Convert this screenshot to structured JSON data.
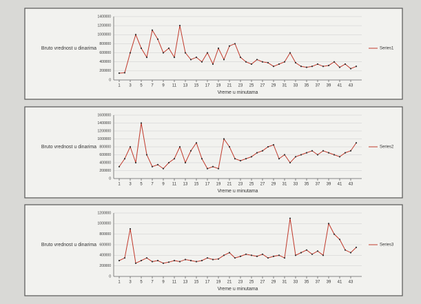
{
  "chart_data": [
    {
      "type": "line",
      "y_label": "Bruto vrednost u dinarima",
      "x_label": "Vreme u minutama",
      "x": [
        1,
        2,
        3,
        4,
        5,
        6,
        7,
        8,
        9,
        10,
        11,
        12,
        13,
        14,
        15,
        16,
        17,
        18,
        19,
        20,
        21,
        22,
        23,
        24,
        25,
        26,
        27,
        28,
        29,
        30,
        31,
        32,
        33,
        34,
        35,
        36,
        37,
        38,
        39,
        40,
        41,
        42,
        43,
        44
      ],
      "xlim": [
        0,
        45
      ],
      "xticks": [
        1,
        3,
        5,
        7,
        9,
        11,
        13,
        15,
        17,
        19,
        21,
        23,
        25,
        27,
        29,
        31,
        33,
        35,
        37,
        39,
        41,
        43
      ],
      "ylim": [
        0,
        1400000
      ],
      "yticks": [
        0,
        200000,
        400000,
        600000,
        800000,
        1000000,
        1200000,
        1400000
      ],
      "series": [
        {
          "name": "Series1",
          "color": "#c0392b",
          "values": [
            150000,
            160000,
            600000,
            1000000,
            700000,
            500000,
            1100000,
            900000,
            600000,
            700000,
            500000,
            1200000,
            600000,
            450000,
            500000,
            400000,
            600000,
            350000,
            700000,
            450000,
            750000,
            800000,
            500000,
            400000,
            350000,
            450000,
            400000,
            380000,
            300000,
            350000,
            400000,
            600000,
            380000,
            300000,
            280000,
            300000,
            350000,
            300000,
            320000,
            400000,
            280000,
            350000,
            250000,
            300000
          ]
        }
      ]
    },
    {
      "type": "line",
      "y_label": "Bruto vrednost u dinarima",
      "x_label": "Vreme u minutama",
      "x": [
        1,
        2,
        3,
        4,
        5,
        6,
        7,
        8,
        9,
        10,
        11,
        12,
        13,
        14,
        15,
        16,
        17,
        18,
        19,
        20,
        21,
        22,
        23,
        24,
        25,
        26,
        27,
        28,
        29,
        30,
        31,
        32,
        33,
        34,
        35,
        36,
        37,
        38,
        39,
        40,
        41,
        42,
        43,
        44
      ],
      "xlim": [
        0,
        45
      ],
      "xticks": [
        1,
        3,
        5,
        7,
        9,
        11,
        13,
        15,
        17,
        19,
        21,
        23,
        25,
        27,
        29,
        31,
        33,
        35,
        37,
        39,
        41,
        43
      ],
      "ylim": [
        0,
        1600000
      ],
      "yticks": [
        0,
        200000,
        400000,
        600000,
        800000,
        1000000,
        1200000,
        1400000,
        1600000
      ],
      "series": [
        {
          "name": "Series2",
          "color": "#c0392b",
          "values": [
            300000,
            500000,
            800000,
            400000,
            1400000,
            600000,
            300000,
            350000,
            250000,
            400000,
            500000,
            800000,
            400000,
            700000,
            900000,
            500000,
            250000,
            300000,
            250000,
            1000000,
            800000,
            500000,
            450000,
            500000,
            550000,
            650000,
            700000,
            800000,
            850000,
            500000,
            600000,
            400000,
            550000,
            600000,
            650000,
            700000,
            600000,
            700000,
            650000,
            600000,
            550000,
            650000,
            700000,
            900000
          ]
        }
      ]
    },
    {
      "type": "line",
      "y_label": "Bruto vrednost u dinarima",
      "x_label": "Vreme u minutama",
      "x": [
        1,
        2,
        3,
        4,
        5,
        6,
        7,
        8,
        9,
        10,
        11,
        12,
        13,
        14,
        15,
        16,
        17,
        18,
        19,
        20,
        21,
        22,
        23,
        24,
        25,
        26,
        27,
        28,
        29,
        30,
        31,
        32,
        33,
        34,
        35,
        36,
        37,
        38,
        39,
        40,
        41,
        42,
        43,
        44
      ],
      "xlim": [
        0,
        45
      ],
      "xticks": [
        1,
        3,
        5,
        7,
        9,
        11,
        13,
        15,
        17,
        19,
        21,
        23,
        25,
        27,
        29,
        31,
        33,
        35,
        37,
        39,
        41,
        43
      ],
      "ylim": [
        0,
        1200000
      ],
      "yticks": [
        0,
        200000,
        400000,
        600000,
        800000,
        1000000,
        1200000
      ],
      "series": [
        {
          "name": "Series3",
          "color": "#c0392b",
          "values": [
            300000,
            350000,
            900000,
            250000,
            300000,
            350000,
            280000,
            300000,
            250000,
            270000,
            300000,
            280000,
            320000,
            300000,
            280000,
            300000,
            350000,
            320000,
            330000,
            400000,
            450000,
            350000,
            380000,
            420000,
            400000,
            380000,
            420000,
            350000,
            380000,
            400000,
            350000,
            1100000,
            400000,
            450000,
            500000,
            420000,
            480000,
            400000,
            1000000,
            800000,
            700000,
            500000,
            450000,
            550000
          ]
        }
      ]
    }
  ]
}
